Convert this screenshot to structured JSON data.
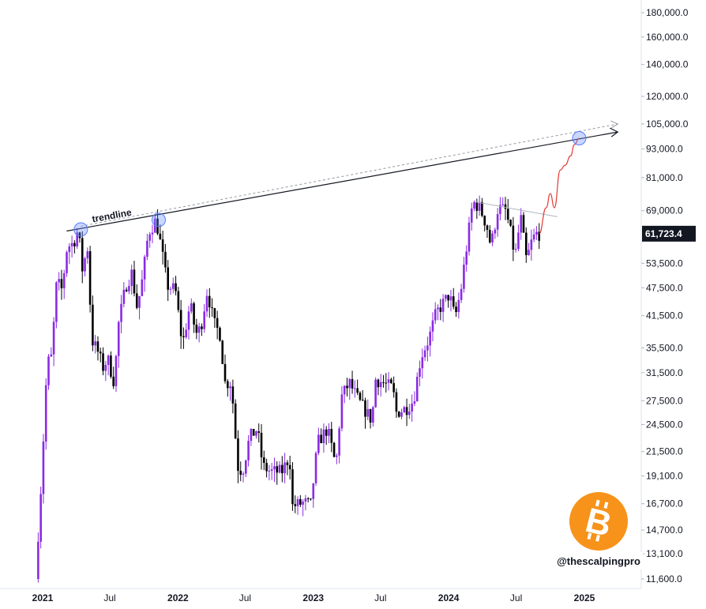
{
  "chart_data": {
    "type": "candlestick",
    "title": "",
    "y_scale": "log",
    "ylim": [
      11000,
      190000
    ],
    "y_ticks": [
      {
        "value": 180000,
        "label": "180,000.0"
      },
      {
        "value": 160000,
        "label": "160,000.0"
      },
      {
        "value": 140000,
        "label": "140,000.0"
      },
      {
        "value": 120000,
        "label": "120,000.0"
      },
      {
        "value": 105000,
        "label": "105,000.0"
      },
      {
        "value": 93000,
        "label": "93,000.0"
      },
      {
        "value": 81000,
        "label": "81,000.0"
      },
      {
        "value": 69000,
        "label": "69,000.0"
      },
      {
        "value": 53500,
        "label": "53,500.0"
      },
      {
        "value": 47500,
        "label": "47,500.0"
      },
      {
        "value": 41500,
        "label": "41,500.0"
      },
      {
        "value": 35500,
        "label": "35,500.0"
      },
      {
        "value": 31500,
        "label": "31,500.0"
      },
      {
        "value": 27500,
        "label": "27,500.0"
      },
      {
        "value": 24500,
        "label": "24,500.0"
      },
      {
        "value": 21500,
        "label": "21,500.0"
      },
      {
        "value": 19100,
        "label": "19,100.0"
      },
      {
        "value": 16700,
        "label": "16,700.0"
      },
      {
        "value": 14700,
        "label": "14,700.0"
      },
      {
        "value": 13100,
        "label": "13,100.0"
      },
      {
        "value": 11600,
        "label": "11,600.0"
      }
    ],
    "x_ticks": [
      {
        "label": "2021",
        "date": "2021-01-01",
        "bold": true
      },
      {
        "label": "Jul",
        "date": "2021-07-01",
        "bold": false
      },
      {
        "label": "2022",
        "date": "2022-01-01",
        "bold": true
      },
      {
        "label": "Jul",
        "date": "2022-07-01",
        "bold": false
      },
      {
        "label": "2023",
        "date": "2023-01-01",
        "bold": true
      },
      {
        "label": "Jul",
        "date": "2023-07-01",
        "bold": false
      },
      {
        "label": "2024",
        "date": "2024-01-01",
        "bold": true
      },
      {
        "label": "Jul",
        "date": "2024-07-01",
        "bold": false
      },
      {
        "label": "2025",
        "date": "2025-01-01",
        "bold": true
      }
    ],
    "current_price": {
      "value": 61723.4,
      "label": "61,723.4"
    },
    "up_color": "#8a2be2",
    "down_color": "#000000",
    "price_path": [
      [
        "2020-12-20",
        11600
      ],
      [
        "2021-01-05",
        19000
      ],
      [
        "2021-01-20",
        33000
      ],
      [
        "2021-02-01",
        34000
      ],
      [
        "2021-02-15",
        49000
      ],
      [
        "2021-03-01",
        47000
      ],
      [
        "2021-03-15",
        58000
      ],
      [
        "2021-04-01",
        59000
      ],
      [
        "2021-04-14",
        63000
      ],
      [
        "2021-04-25",
        52000
      ],
      [
        "2021-05-10",
        58000
      ],
      [
        "2021-05-20",
        37000
      ],
      [
        "2021-06-05",
        35000
      ],
      [
        "2021-06-22",
        32000
      ],
      [
        "2021-07-01",
        34000
      ],
      [
        "2021-07-20",
        30000
      ],
      [
        "2021-08-01",
        40000
      ],
      [
        "2021-08-20",
        48000
      ],
      [
        "2021-09-05",
        51000
      ],
      [
        "2021-09-20",
        43000
      ],
      [
        "2021-10-05",
        50000
      ],
      [
        "2021-10-20",
        62000
      ],
      [
        "2021-11-10",
        66000
      ],
      [
        "2021-11-25",
        57000
      ],
      [
        "2021-12-10",
        48000
      ],
      [
        "2022-01-01",
        47000
      ],
      [
        "2022-01-20",
        36000
      ],
      [
        "2022-02-10",
        44000
      ],
      [
        "2022-02-25",
        38000
      ],
      [
        "2022-03-10",
        39000
      ],
      [
        "2022-03-28",
        47000
      ],
      [
        "2022-04-15",
        40000
      ],
      [
        "2022-05-01",
        38000
      ],
      [
        "2022-05-15",
        30000
      ],
      [
        "2022-06-01",
        30000
      ],
      [
        "2022-06-18",
        20000
      ],
      [
        "2022-07-01",
        19500
      ],
      [
        "2022-07-20",
        23000
      ],
      [
        "2022-08-10",
        24000
      ],
      [
        "2022-08-25",
        20000
      ],
      [
        "2022-09-15",
        19500
      ],
      [
        "2022-10-15",
        19500
      ],
      [
        "2022-11-05",
        21000
      ],
      [
        "2022-11-12",
        16500
      ],
      [
        "2022-12-15",
        16800
      ],
      [
        "2023-01-01",
        16600
      ],
      [
        "2023-01-20",
        22500
      ],
      [
        "2023-02-15",
        24000
      ],
      [
        "2023-03-10",
        20000
      ],
      [
        "2023-03-25",
        28000
      ],
      [
        "2023-04-15",
        30000
      ],
      [
        "2023-05-10",
        27500
      ],
      [
        "2023-06-15",
        25000
      ],
      [
        "2023-06-25",
        30500
      ],
      [
        "2023-07-15",
        30000
      ],
      [
        "2023-08-10",
        29200
      ],
      [
        "2023-08-20",
        26000
      ],
      [
        "2023-09-15",
        26500
      ],
      [
        "2023-10-05",
        27500
      ],
      [
        "2023-10-25",
        34000
      ],
      [
        "2023-11-15",
        37000
      ],
      [
        "2023-12-05",
        42000
      ],
      [
        "2024-01-10",
        46000
      ],
      [
        "2024-01-25",
        41000
      ],
      [
        "2024-02-10",
        47000
      ],
      [
        "2024-02-28",
        60000
      ],
      [
        "2024-03-13",
        72000
      ],
      [
        "2024-04-01",
        70000
      ],
      [
        "2024-04-20",
        64000
      ],
      [
        "2024-05-01",
        58000
      ],
      [
        "2024-05-20",
        70000
      ],
      [
        "2024-06-10",
        69000
      ],
      [
        "2024-06-25",
        61000
      ],
      [
        "2024-07-05",
        55000
      ],
      [
        "2024-07-20",
        67000
      ],
      [
        "2024-08-05",
        54000
      ],
      [
        "2024-08-20",
        60000
      ],
      [
        "2024-09-01",
        61723.4
      ]
    ],
    "projection_path": [
      [
        "2024-09-01",
        61723.4
      ],
      [
        "2024-09-20",
        70000
      ],
      [
        "2024-10-01",
        75000
      ],
      [
        "2024-10-12",
        70000
      ],
      [
        "2024-10-28",
        84000
      ],
      [
        "2024-11-10",
        86000
      ],
      [
        "2024-11-25",
        90000
      ],
      [
        "2024-12-05",
        95000
      ],
      [
        "2024-12-18",
        98000
      ]
    ],
    "trendline": {
      "label": "trendline",
      "start": [
        "2021-04-14",
        63000
      ],
      "end": [
        "2025-04-01",
        101000
      ]
    },
    "dotted_trendline": {
      "start": [
        "2021-04-14",
        64000
      ],
      "end": [
        "2025-04-01",
        105000
      ]
    },
    "touch_points": [
      [
        "2021-04-14",
        63000
      ],
      [
        "2021-11-10",
        66000
      ],
      [
        "2024-12-18",
        98000
      ]
    ],
    "resistance_line": {
      "start": [
        "2024-03-13",
        72000
      ],
      "end": [
        "2024-10-20",
        67000
      ]
    }
  },
  "watermark": {
    "handle": "@thescalpingpro",
    "logo_glyph": "B"
  }
}
